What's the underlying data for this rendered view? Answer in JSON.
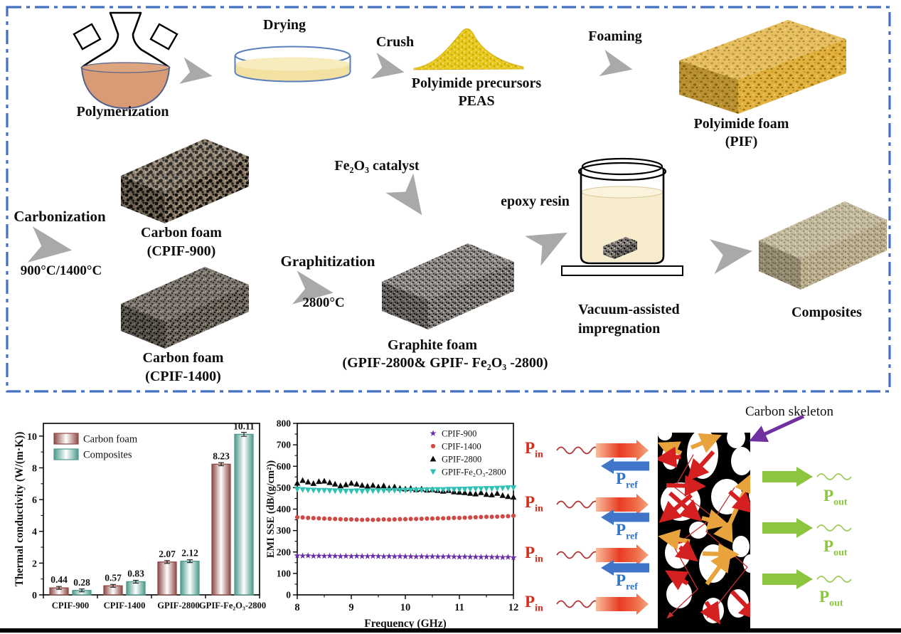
{
  "flow": {
    "polymerization": "Polymerization",
    "drying": "Drying",
    "crush": "Crush",
    "precursors_line1": "Polyimide precursors",
    "precursors_line2": "PEAS",
    "foaming": "Foaming",
    "pif_line1": "Polyimide foam",
    "pif_line2": "(PIF)",
    "carbonization": "Carbonization",
    "carbonization_temp": "900°C/1400°C",
    "cpif900_line1": "Carbon foam",
    "cpif900_line2": "(CPIF-900)",
    "cpif1400_line1": "Carbon foam",
    "cpif1400_line2": "(CPIF-1400)",
    "fe2o3_catalyst": "Fe₂O₃ catalyst",
    "graphitization": "Graphitization",
    "graphitization_temp": "2800°C",
    "graphite_line1": "Graphite foam",
    "graphite_line2": "(GPIF-2800& GPIF- Fe₂O₃ -2800)",
    "epoxy_resin": "epoxy resin",
    "vacuum_line1": "Vacuum-assisted",
    "vacuum_line2": "impregnation",
    "composites": "Composites"
  },
  "schematic": {
    "carbon_skeleton": "Carbon skeleton",
    "pin_main": "P",
    "pin_sub": "in",
    "pref_main": "P",
    "pref_sub": "ref",
    "pout_main": "P",
    "pout_sub": "out",
    "colors": {
      "pin": "#D92B1C",
      "pref": "#3F74C9",
      "pout": "#8CC63E",
      "skeleton_arrow": "#7030A0",
      "inner_arrow_red": "#D42020",
      "inner_arrow_gold": "#E8A33D"
    }
  },
  "chart_data": [
    {
      "type": "bar",
      "title": "",
      "ylabel": "Thermal conductivity (W/(m·K))",
      "xlabel": "",
      "categories": [
        "CPIF-900",
        "CPIF-1400",
        "GPIF-2800",
        "GPIF-Fe₂O₃-2800"
      ],
      "series": [
        {
          "name": "Carbon foam",
          "color": "#8E4A46",
          "values": [
            0.44,
            0.57,
            2.07,
            8.23
          ]
        },
        {
          "name": "Composites",
          "color": "#4D9A8C",
          "values": [
            0.28,
            0.83,
            2.12,
            10.11
          ]
        }
      ],
      "ylim": [
        0,
        10.8
      ],
      "yticks": [
        0,
        2,
        4,
        6,
        8,
        10
      ],
      "grid": false,
      "legend_position": "top-left",
      "value_labels": true
    },
    {
      "type": "scatter",
      "title": "",
      "xlabel": "Frequency (GHz)",
      "ylabel": "EMI SSE (dB/(g/cm²))",
      "xlim": [
        8,
        12
      ],
      "ylim": [
        0,
        800
      ],
      "xticks": [
        8,
        9,
        10,
        11,
        12
      ],
      "yticks": [
        0,
        100,
        200,
        300,
        400,
        500,
        600,
        700,
        800
      ],
      "grid": false,
      "legend_position": "top-right",
      "x_start": 8,
      "x_step": 0.1,
      "series": [
        {
          "name": "CPIF-900",
          "marker": "star",
          "color": "#6A2FA8",
          "values": [
            183,
            182,
            183,
            181,
            182,
            181,
            182,
            181,
            180,
            181,
            180,
            181,
            180,
            180,
            181,
            180,
            179,
            180,
            179,
            180,
            179,
            179,
            178,
            179,
            178,
            179,
            178,
            178,
            179,
            178,
            177,
            178,
            177,
            177,
            176,
            177,
            176,
            176,
            175,
            176,
            174
          ]
        },
        {
          "name": "CPIF-1400",
          "marker": "circle",
          "color": "#CF4A45",
          "values": [
            362,
            361,
            359,
            358,
            357,
            356,
            355,
            354,
            353,
            352,
            352,
            351,
            350,
            351,
            350,
            351,
            352,
            351,
            352,
            353,
            353,
            354,
            354,
            355,
            356,
            356,
            357,
            357,
            358,
            359,
            359,
            360,
            361,
            362,
            363,
            364,
            364,
            365,
            366,
            367,
            369
          ]
        },
        {
          "name": "GPIF-2800",
          "marker": "triangle-up",
          "color": "#0a0a0a",
          "values": [
            521,
            534,
            527,
            520,
            529,
            531,
            524,
            517,
            509,
            514,
            521,
            517,
            511,
            507,
            511,
            504,
            509,
            499,
            504,
            497,
            494,
            497,
            491,
            494,
            489,
            491,
            487,
            484,
            487,
            481,
            479,
            477,
            474,
            471,
            477,
            469,
            467,
            474,
            464,
            459,
            456
          ]
        },
        {
          "name": "GPIF-Fe₂O₃-2800",
          "marker": "triangle-down",
          "color": "#2FC1B5",
          "values": [
            493,
            491,
            489,
            488,
            487,
            487,
            486,
            485,
            485,
            484,
            484,
            485,
            484,
            485,
            485,
            486,
            486,
            487,
            487,
            487,
            488,
            488,
            489,
            489,
            490,
            490,
            491,
            491,
            492,
            492,
            493,
            493,
            494,
            495,
            495,
            496,
            496,
            497,
            498,
            499,
            500
          ]
        }
      ]
    }
  ]
}
